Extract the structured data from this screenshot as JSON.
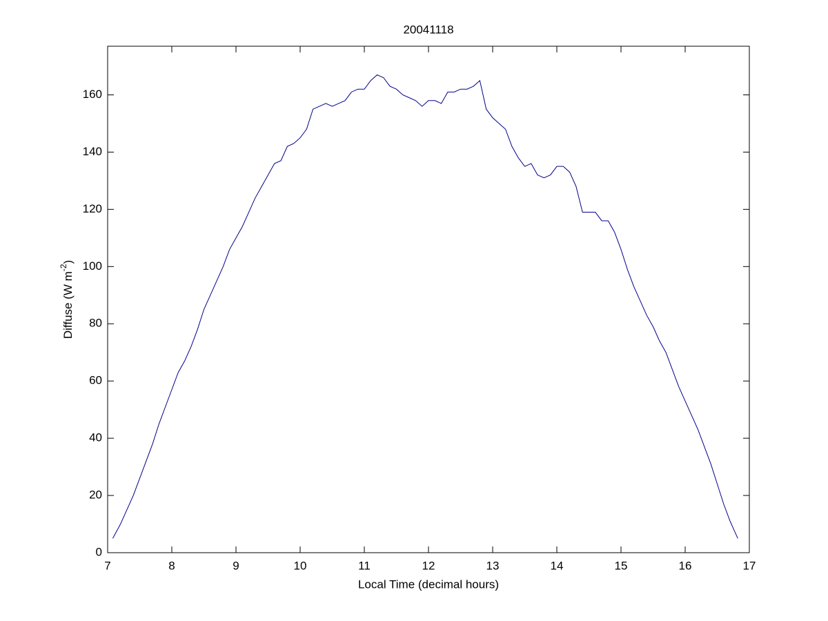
{
  "chart_data": {
    "type": "line",
    "title": "20041118",
    "xlabel": "Local Time (decimal hours)",
    "ylabel": {
      "text": "Diffuse (W m",
      "superscript": "-2",
      "suffix": ")"
    },
    "xlim": [
      7,
      17
    ],
    "ylim": [
      0,
      177
    ],
    "xticks": [
      7,
      8,
      9,
      10,
      11,
      12,
      13,
      14,
      15,
      16,
      17
    ],
    "yticks": [
      0,
      20,
      40,
      60,
      80,
      100,
      120,
      140,
      160
    ],
    "grid": false,
    "series": [
      {
        "color": "#00008b",
        "x": [
          7.08,
          7.2,
          7.3,
          7.4,
          7.5,
          7.6,
          7.7,
          7.8,
          7.9,
          8.0,
          8.1,
          8.2,
          8.3,
          8.4,
          8.5,
          8.6,
          8.7,
          8.8,
          8.9,
          9.0,
          9.1,
          9.2,
          9.3,
          9.4,
          9.5,
          9.6,
          9.7,
          9.8,
          9.9,
          10.0,
          10.1,
          10.2,
          10.3,
          10.4,
          10.5,
          10.6,
          10.7,
          10.8,
          10.9,
          11.0,
          11.1,
          11.2,
          11.3,
          11.4,
          11.5,
          11.6,
          11.7,
          11.8,
          11.9,
          12.0,
          12.1,
          12.2,
          12.3,
          12.4,
          12.5,
          12.6,
          12.7,
          12.8,
          12.9,
          13.0,
          13.1,
          13.2,
          13.3,
          13.4,
          13.5,
          13.6,
          13.7,
          13.8,
          13.9,
          14.0,
          14.1,
          14.2,
          14.3,
          14.4,
          14.5,
          14.6,
          14.7,
          14.8,
          14.9,
          15.0,
          15.1,
          15.2,
          15.3,
          15.4,
          15.5,
          15.6,
          15.7,
          15.8,
          15.9,
          16.0,
          16.1,
          16.2,
          16.3,
          16.4,
          16.5,
          16.6,
          16.7,
          16.82
        ],
        "values": [
          5,
          10,
          15,
          20,
          26,
          32,
          38,
          45,
          51,
          57,
          63,
          67,
          72,
          78,
          85,
          90,
          95,
          100,
          106,
          110,
          114,
          119,
          124,
          128,
          132,
          136,
          137,
          142,
          143,
          145,
          148,
          155,
          156,
          157,
          156,
          157,
          158,
          161,
          162,
          162,
          165,
          167,
          166,
          163,
          162,
          160,
          159,
          158,
          156,
          158,
          158,
          157,
          161,
          161,
          162,
          162,
          163,
          165,
          155,
          152,
          150,
          148,
          142,
          138,
          135,
          136,
          132,
          131,
          132,
          135,
          135,
          133,
          128,
          119,
          119,
          119,
          116,
          116,
          112,
          106,
          99,
          93,
          88,
          83,
          79,
          74,
          70,
          64,
          58,
          53,
          48,
          43,
          37,
          31,
          24,
          17,
          11,
          5
        ]
      }
    ]
  }
}
